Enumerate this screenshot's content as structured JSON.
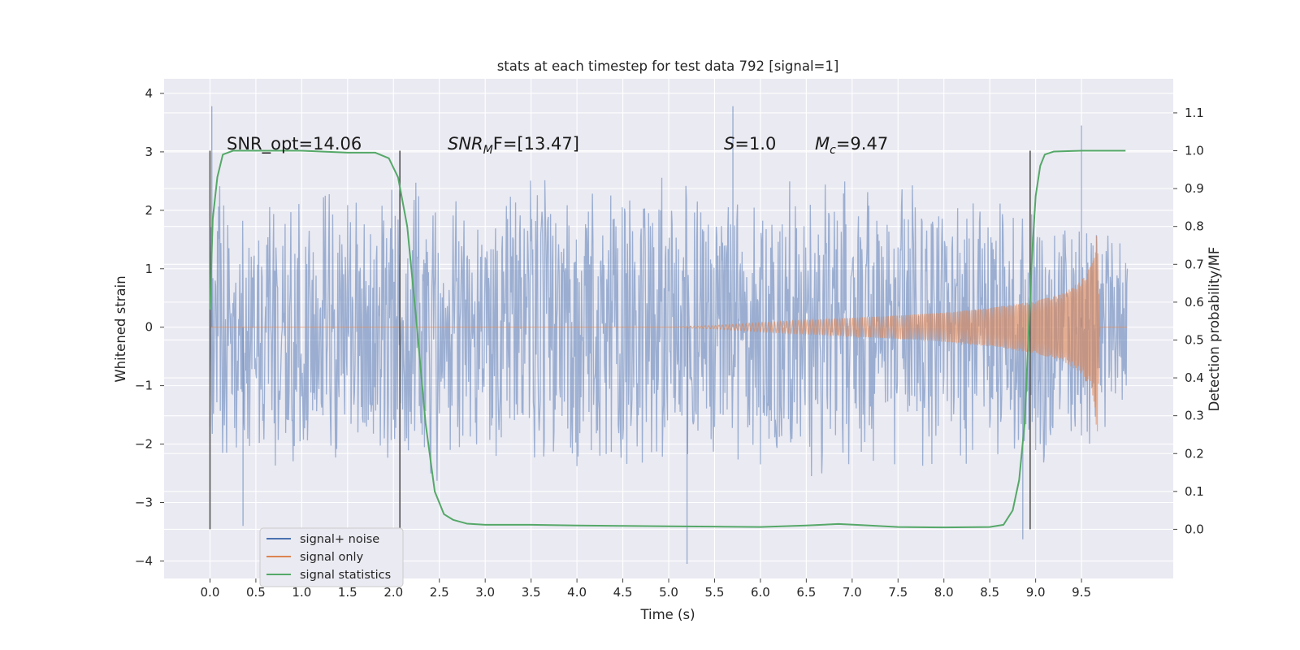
{
  "chart_data": {
    "type": "line",
    "title": "stats at each timestep for test data 792 [signal=1]",
    "xlabel": "Time (s)",
    "ylabel": "Whitened strain",
    "y2label": "Detection probability/MF",
    "xlim": [
      -0.5,
      10.5
    ],
    "ylim": [
      -4.3,
      4.25
    ],
    "y2lim": [
      -0.13,
      1.19
    ],
    "grid": true,
    "legend_position": "lower-left",
    "x_ticks": [
      "0.0",
      "0.5",
      "1.0",
      "1.5",
      "2.0",
      "2.5",
      "3.0",
      "3.5",
      "4.0",
      "4.5",
      "5.0",
      "5.5",
      "6.0",
      "6.5",
      "7.0",
      "7.5",
      "8.0",
      "8.5",
      "9.0",
      "9.5"
    ],
    "y_ticks": [
      "−4",
      "−3",
      "−2",
      "−1",
      "0",
      "1",
      "2",
      "3",
      "4"
    ],
    "y2_ticks": [
      "0.0",
      "0.1",
      "0.2",
      "0.3",
      "0.4",
      "0.5",
      "0.6",
      "0.7",
      "0.8",
      "0.9",
      "1.0",
      "1.1"
    ],
    "annotations": {
      "snr_opt": "SNR_opt=14.06",
      "snr_mf_main": "SNR",
      "snr_mf_sub": "M",
      "snr_mf_rest": "F=[13.47]",
      "s_var": "S",
      "s_rest": "=1.0",
      "mc_var": "M",
      "mc_sub": "c",
      "mc_rest": "=9.47"
    },
    "vertical_lines_x": [
      0.0,
      2.07,
      8.94
    ],
    "series": [
      {
        "name": "signal+ noise",
        "color": "#4c72b0",
        "description_range": [
          0.0,
          10.0
        ],
        "envelope_low": [
          -2.7,
          -2.6,
          -2.7,
          -2.5,
          -2.6,
          -2.8,
          -2.7,
          -2.6,
          -2.8,
          -2.7,
          -2.6,
          -2.5,
          -2.7,
          -2.6,
          -2.8,
          -2.7,
          -2.6,
          -2.7,
          -2.6,
          -2.5,
          -1.5
        ],
        "envelope_high": [
          2.6,
          2.5,
          2.7,
          2.6,
          2.8,
          2.6,
          2.5,
          2.7,
          2.6,
          2.8,
          2.7,
          2.6,
          2.5,
          2.7,
          2.6,
          2.8,
          2.7,
          2.6,
          2.5,
          2.4,
          1.4
        ],
        "notable_extremes": [
          [
            0.02,
            3.78
          ],
          [
            0.36,
            -3.4
          ],
          [
            5.2,
            -4.05
          ],
          [
            5.7,
            3.78
          ],
          [
            9.5,
            3.45
          ],
          [
            8.86,
            -3.63
          ]
        ]
      },
      {
        "name": "signal only",
        "color": "#dd8452",
        "x": [
          0.0,
          5.0,
          5.5,
          6.0,
          6.5,
          7.0,
          7.5,
          8.0,
          8.5,
          9.0,
          9.3,
          9.5,
          9.6,
          9.65,
          9.67,
          9.7,
          10.0
        ],
        "amplitude": [
          0.0,
          0.0,
          0.03,
          0.08,
          0.12,
          0.16,
          0.2,
          0.25,
          0.33,
          0.45,
          0.58,
          0.8,
          1.05,
          1.4,
          1.95,
          0.0,
          0.0
        ]
      },
      {
        "name": "signal statistics",
        "color": "#55a868",
        "x": [
          0.0,
          0.03,
          0.08,
          0.14,
          0.25,
          0.5,
          1.0,
          1.5,
          1.8,
          1.95,
          2.05,
          2.15,
          2.25,
          2.35,
          2.45,
          2.55,
          2.65,
          2.8,
          3.0,
          3.5,
          4.0,
          4.5,
          5.0,
          5.5,
          6.0,
          6.5,
          6.85,
          7.1,
          7.5,
          8.0,
          8.5,
          8.65,
          8.75,
          8.82,
          8.88,
          8.92,
          8.96,
          9.0,
          9.05,
          9.1,
          9.2,
          9.5,
          9.98
        ],
        "y": [
          0.58,
          0.82,
          0.93,
          0.99,
          1.0,
          1.0,
          1.0,
          0.995,
          0.995,
          0.98,
          0.93,
          0.8,
          0.55,
          0.28,
          0.1,
          0.04,
          0.025,
          0.015,
          0.012,
          0.012,
          0.01,
          0.009,
          0.008,
          0.007,
          0.006,
          0.01,
          0.014,
          0.011,
          0.006,
          0.005,
          0.006,
          0.012,
          0.05,
          0.13,
          0.28,
          0.5,
          0.72,
          0.88,
          0.96,
          0.99,
          0.998,
          1.0,
          1.0
        ]
      }
    ]
  }
}
